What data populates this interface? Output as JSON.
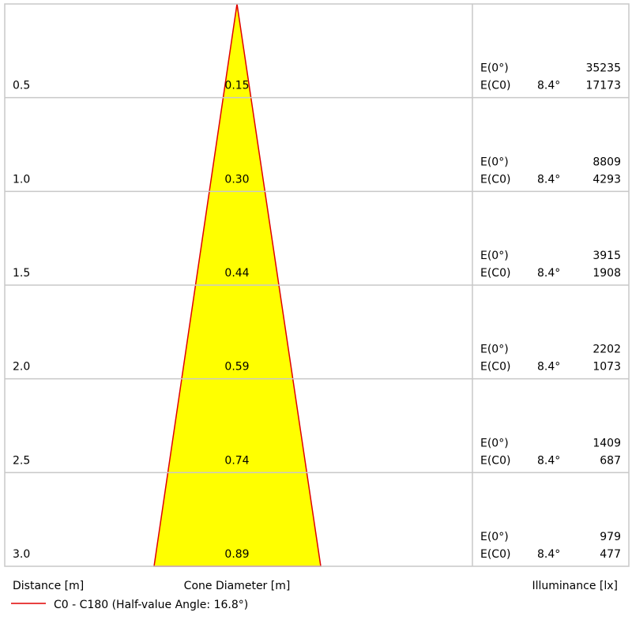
{
  "rows": [
    {
      "distance": "0.5",
      "diameter": "0.15",
      "e0_label": "E(0°)",
      "e0_value": "35235",
      "ec0_label": "E(C0)",
      "angle": "8.4°",
      "ec0_value": "17173"
    },
    {
      "distance": "1.0",
      "diameter": "0.30",
      "e0_label": "E(0°)",
      "e0_value": "8809",
      "ec0_label": "E(C0)",
      "angle": "8.4°",
      "ec0_value": "4293"
    },
    {
      "distance": "1.5",
      "diameter": "0.44",
      "e0_label": "E(0°)",
      "e0_value": "3915",
      "ec0_label": "E(C0)",
      "angle": "8.4°",
      "ec0_value": "1908"
    },
    {
      "distance": "2.0",
      "diameter": "0.59",
      "e0_label": "E(0°)",
      "e0_value": "2202",
      "ec0_label": "E(C0)",
      "angle": "8.4°",
      "ec0_value": "1073"
    },
    {
      "distance": "2.5",
      "diameter": "0.74",
      "e0_label": "E(0°)",
      "e0_value": "1409",
      "ec0_label": "E(C0)",
      "angle": "8.4°",
      "ec0_value": "687"
    },
    {
      "distance": "3.0",
      "diameter": "0.89",
      "e0_label": "E(0°)",
      "e0_value": "979",
      "ec0_label": "E(C0)",
      "angle": "8.4°",
      "ec0_value": "477"
    }
  ],
  "footer": {
    "distance_label": "Distance [m]",
    "diameter_label": "Cone Diameter [m]",
    "illuminance_label": "Illuminance [lx]"
  },
  "legend": {
    "label": "C0 - C180 (Half-value Angle: 16.8°)"
  }
}
